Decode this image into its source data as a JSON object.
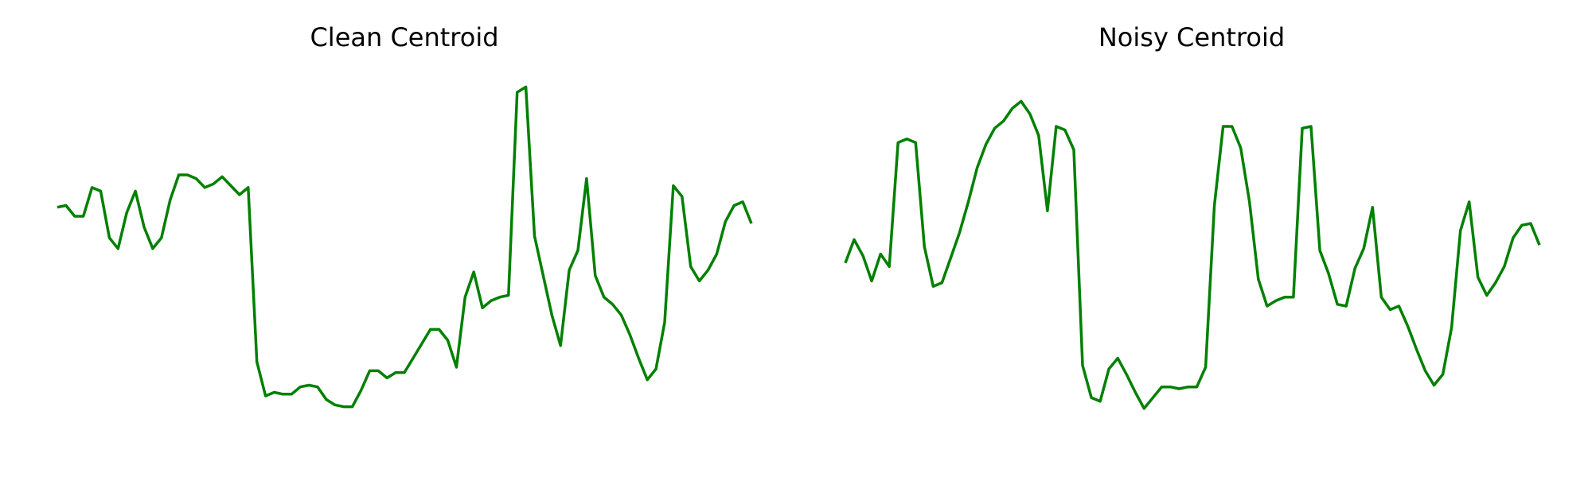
{
  "series_color": "#008000",
  "chart_data": [
    {
      "type": "line",
      "title": "Clean Centroid",
      "xlabel": "",
      "ylabel": "",
      "axes_visible": false,
      "grid": false,
      "ylim": [
        0,
        100
      ],
      "series": [
        {
          "values": [
            64,
            64.5,
            61.5,
            61.5,
            69.5,
            68.5,
            55.5,
            52.5,
            62.5,
            68.5,
            58.5,
            52.5,
            55.5,
            66,
            73,
            73,
            72,
            69.5,
            70.5,
            72.5,
            70,
            67.5,
            69.5,
            21,
            11.5,
            12.5,
            12,
            12,
            14,
            14.5,
            14,
            10.5,
            9,
            8.5,
            8.5,
            13,
            18.5,
            18.5,
            16.5,
            18,
            18,
            22,
            26,
            30,
            30,
            27,
            19.5,
            39,
            46,
            36,
            38,
            39,
            39.5,
            96,
            97.5,
            56,
            45,
            34,
            25.5,
            46.5,
            52,
            72,
            45,
            39,
            37,
            34,
            28.5,
            22,
            16,
            19,
            32,
            70,
            67,
            47.5,
            43.5,
            46.5,
            51,
            60,
            64.5,
            65.5,
            59.5
          ]
        }
      ]
    },
    {
      "type": "line",
      "title": "Noisy Centroid",
      "xlabel": "",
      "ylabel": "",
      "axes_visible": false,
      "grid": false,
      "ylim": [
        0,
        100
      ],
      "series": [
        {
          "values": [
            48.5,
            55,
            50.5,
            43.5,
            51,
            47.5,
            82,
            83,
            82,
            53,
            42,
            43,
            50,
            57,
            65.5,
            75,
            81.5,
            86,
            88,
            91.5,
            93.5,
            90,
            84,
            63,
            86.5,
            85.5,
            80,
            20,
            11,
            10,
            19,
            22,
            17.5,
            12.5,
            8,
            11,
            14,
            14,
            13.5,
            14,
            14,
            19.5,
            64.5,
            86.5,
            86.5,
            80.5,
            65.5,
            44,
            36.5,
            38,
            39,
            39,
            86,
            86.5,
            52,
            45.5,
            37,
            36.5,
            47,
            52.5,
            64,
            39,
            35.5,
            36.5,
            31,
            24.5,
            18.5,
            14.5,
            17.5,
            30.5,
            57.5,
            65.5,
            44.5,
            39.5,
            43,
            47.5,
            55.5,
            59,
            59.5,
            53.5
          ]
        }
      ]
    }
  ]
}
